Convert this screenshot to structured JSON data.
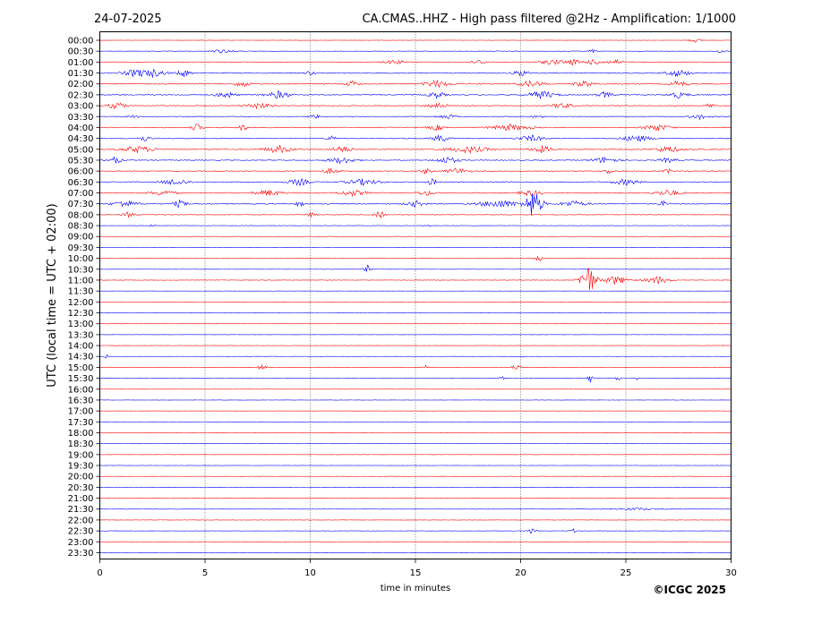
{
  "header": {
    "date": "24-07-2025",
    "title": "CA.CMAS..HHZ - High pass filtered @2Hz - Amplification: 1/1000"
  },
  "chart_data": {
    "type": "line",
    "title": "CA.CMAS..HHZ - High pass filtered @2Hz - Amplification: 1/1000",
    "xlabel": "time in minutes",
    "ylabel": "UTC (local time = UTC + 02:00)",
    "xlim": [
      0,
      30
    ],
    "x_ticks": [
      "0",
      "5",
      "10",
      "15",
      "20",
      "25",
      "30"
    ],
    "vertical_grid_minutes": [
      5,
      10,
      15,
      20,
      25
    ],
    "trace_colors": [
      "#ff0000",
      "#0000ff"
    ],
    "rows": [
      {
        "label": "00:00",
        "color": "#ff0000",
        "noise": 0.15,
        "bursts": [
          [
            28.3,
            0.8,
            0.6
          ]
        ]
      },
      {
        "label": "00:30",
        "color": "#0000ff",
        "noise": 0.25,
        "bursts": [
          [
            5.8,
            1.5,
            0.6
          ],
          [
            23.4,
            0.4,
            0.6
          ],
          [
            29.5,
            0.6,
            0.6
          ]
        ]
      },
      {
        "label": "01:00",
        "color": "#ff0000",
        "noise": 0.35,
        "bursts": [
          [
            14.0,
            1.4,
            0.7
          ],
          [
            18.0,
            1.0,
            0.7
          ],
          [
            21.5,
            1.5,
            0.9
          ],
          [
            22.5,
            1.2,
            0.9
          ],
          [
            23.5,
            1.5,
            0.8
          ],
          [
            24.5,
            1.0,
            0.8
          ]
        ]
      },
      {
        "label": "01:30",
        "color": "#0000ff",
        "noise": 0.55,
        "bursts": [
          [
            1.8,
            1.6,
            1.4
          ],
          [
            2.5,
            1.5,
            1.3
          ],
          [
            4.0,
            0.8,
            1.2
          ],
          [
            10.0,
            0.6,
            0.8
          ],
          [
            20.0,
            1.0,
            1.0
          ],
          [
            27.5,
            1.5,
            1.1
          ]
        ]
      },
      {
        "label": "02:00",
        "color": "#ff0000",
        "noise": 0.45,
        "bursts": [
          [
            6.8,
            1.0,
            1.0
          ],
          [
            12.0,
            0.8,
            1.0
          ],
          [
            16.0,
            1.5,
            1.2
          ],
          [
            20.5,
            1.5,
            1.1
          ],
          [
            23.0,
            1.2,
            1.0
          ],
          [
            27.5,
            1.2,
            1.0
          ]
        ]
      },
      {
        "label": "02:30",
        "color": "#0000ff",
        "noise": 0.55,
        "bursts": [
          [
            6.0,
            1.2,
            1.1
          ],
          [
            8.5,
            1.4,
            1.2
          ],
          [
            16.0,
            1.0,
            1.1
          ],
          [
            21.0,
            1.6,
            1.3
          ],
          [
            24.0,
            1.0,
            1.0
          ],
          [
            27.5,
            1.2,
            1.0
          ]
        ]
      },
      {
        "label": "03:00",
        "color": "#ff0000",
        "noise": 0.45,
        "bursts": [
          [
            0.8,
            1.0,
            1.2
          ],
          [
            7.5,
            1.6,
            1.0
          ],
          [
            16.0,
            1.2,
            1.0
          ],
          [
            22.0,
            1.2,
            1.0
          ],
          [
            29.0,
            0.6,
            0.8
          ]
        ]
      },
      {
        "label": "03:30",
        "color": "#0000ff",
        "noise": 0.35,
        "bursts": [
          [
            1.6,
            0.6,
            0.8
          ],
          [
            10.2,
            0.6,
            0.8
          ],
          [
            16.5,
            1.0,
            0.8
          ],
          [
            20.8,
            0.6,
            0.8
          ],
          [
            28.5,
            1.4,
            0.8
          ]
        ]
      },
      {
        "label": "04:00",
        "color": "#ff0000",
        "noise": 0.45,
        "bursts": [
          [
            4.6,
            0.6,
            1.2
          ],
          [
            6.8,
            0.6,
            1.1
          ],
          [
            16.0,
            1.0,
            0.9
          ],
          [
            19.5,
            2.5,
            1.0
          ],
          [
            26.5,
            1.6,
            1.1
          ]
        ]
      },
      {
        "label": "04:30",
        "color": "#0000ff",
        "noise": 0.45,
        "bursts": [
          [
            2.1,
            0.8,
            1.0
          ],
          [
            11.0,
            0.6,
            0.9
          ],
          [
            16.2,
            1.0,
            1.2
          ],
          [
            20.5,
            1.6,
            1.0
          ],
          [
            25.5,
            1.8,
            1.1
          ]
        ]
      },
      {
        "label": "05:00",
        "color": "#ff0000",
        "noise": 0.55,
        "bursts": [
          [
            1.8,
            2.0,
            1.1
          ],
          [
            8.5,
            1.6,
            1.3
          ],
          [
            11.5,
            1.2,
            1.1
          ],
          [
            17.5,
            2.5,
            1.1
          ],
          [
            21.0,
            1.4,
            1.1
          ],
          [
            27.0,
            1.6,
            1.1
          ]
        ]
      },
      {
        "label": "05:30",
        "color": "#0000ff",
        "noise": 0.45,
        "bursts": [
          [
            0.7,
            0.8,
            1.2
          ],
          [
            11.5,
            1.6,
            1.1
          ],
          [
            16.5,
            1.4,
            1.1
          ],
          [
            24.0,
            1.6,
            1.0
          ],
          [
            27.0,
            1.0,
            0.9
          ]
        ]
      },
      {
        "label": "06:00",
        "color": "#ff0000",
        "noise": 0.4,
        "bursts": [
          [
            11.0,
            1.0,
            0.9
          ],
          [
            15.5,
            0.6,
            1.0
          ],
          [
            17.0,
            1.4,
            1.0
          ],
          [
            24.2,
            0.6,
            0.9
          ],
          [
            27.0,
            0.5,
            0.8
          ]
        ]
      },
      {
        "label": "06:30",
        "color": "#0000ff",
        "noise": 0.5,
        "bursts": [
          [
            3.6,
            1.6,
            1.1
          ],
          [
            9.5,
            1.4,
            1.1
          ],
          [
            12.5,
            2.0,
            1.0
          ],
          [
            15.8,
            0.6,
            1.2
          ],
          [
            25.0,
            1.6,
            1.0
          ]
        ]
      },
      {
        "label": "07:00",
        "color": "#ff0000",
        "noise": 0.5,
        "bursts": [
          [
            3.0,
            1.6,
            0.9
          ],
          [
            8.0,
            1.6,
            1.0
          ],
          [
            12.0,
            1.6,
            1.0
          ],
          [
            15.5,
            1.0,
            0.9
          ],
          [
            20.5,
            1.5,
            0.9
          ],
          [
            27.0,
            1.6,
            1.0
          ]
        ]
      },
      {
        "label": "07:30",
        "color": "#0000ff",
        "noise": 0.55,
        "bursts": [
          [
            1.2,
            1.4,
            1.2
          ],
          [
            3.8,
            0.8,
            1.2
          ],
          [
            9.5,
            0.5,
            1.0
          ],
          [
            15.0,
            1.2,
            1.0
          ],
          [
            19.0,
            2.6,
            1.2
          ],
          [
            20.6,
            0.9,
            4.5
          ],
          [
            22.5,
            1.6,
            1.0
          ],
          [
            26.8,
            0.6,
            0.9
          ]
        ]
      },
      {
        "label": "08:00",
        "color": "#ff0000",
        "noise": 0.3,
        "bursts": [
          [
            1.4,
            0.8,
            0.9
          ],
          [
            10.0,
            0.6,
            0.8
          ],
          [
            13.3,
            0.6,
            1.2
          ]
        ]
      },
      {
        "label": "08:30",
        "color": "#0000ff",
        "noise": 0.2,
        "bursts": [
          [
            2.5,
            0.5,
            0.4
          ],
          [
            15.6,
            0.4,
            0.5
          ]
        ]
      },
      {
        "label": "09:00",
        "color": "#ff0000",
        "noise": 0.15,
        "bursts": []
      },
      {
        "label": "09:30",
        "color": "#0000ff",
        "noise": 0.15,
        "bursts": []
      },
      {
        "label": "10:00",
        "color": "#ff0000",
        "noise": 0.15,
        "bursts": [
          [
            20.9,
            0.4,
            1.3
          ]
        ]
      },
      {
        "label": "10:30",
        "color": "#0000ff",
        "noise": 0.15,
        "bursts": [
          [
            12.7,
            0.4,
            1.3
          ]
        ]
      },
      {
        "label": "11:00",
        "color": "#ff0000",
        "noise": 0.25,
        "bursts": [
          [
            23.2,
            0.8,
            4.8
          ],
          [
            24.5,
            1.6,
            1.3
          ],
          [
            26.5,
            1.4,
            1.2
          ]
        ]
      },
      {
        "label": "11:30",
        "color": "#0000ff",
        "noise": 0.12,
        "bursts": []
      },
      {
        "label": "12:00",
        "color": "#ff0000",
        "noise": 0.12,
        "bursts": []
      },
      {
        "label": "12:30",
        "color": "#0000ff",
        "noise": 0.12,
        "bursts": []
      },
      {
        "label": "13:00",
        "color": "#ff0000",
        "noise": 0.12,
        "bursts": []
      },
      {
        "label": "13:30",
        "color": "#0000ff",
        "noise": 0.12,
        "bursts": []
      },
      {
        "label": "14:00",
        "color": "#ff0000",
        "noise": 0.12,
        "bursts": []
      },
      {
        "label": "14:30",
        "color": "#0000ff",
        "noise": 0.12,
        "bursts": [
          [
            0.3,
            0.2,
            0.8
          ]
        ]
      },
      {
        "label": "15:00",
        "color": "#ff0000",
        "noise": 0.2,
        "bursts": [
          [
            7.7,
            0.5,
            1.0
          ],
          [
            15.5,
            0.3,
            0.7
          ],
          [
            19.8,
            0.4,
            1.2
          ]
        ]
      },
      {
        "label": "15:30",
        "color": "#0000ff",
        "noise": 0.2,
        "bursts": [
          [
            19.1,
            0.2,
            1.0
          ],
          [
            23.3,
            0.3,
            1.4
          ],
          [
            24.6,
            0.2,
            1.2
          ],
          [
            25.5,
            0.2,
            0.7
          ]
        ]
      },
      {
        "label": "16:00",
        "color": "#ff0000",
        "noise": 0.12,
        "bursts": []
      },
      {
        "label": "16:30",
        "color": "#0000ff",
        "noise": 0.12,
        "bursts": []
      },
      {
        "label": "17:00",
        "color": "#ff0000",
        "noise": 0.12,
        "bursts": []
      },
      {
        "label": "17:30",
        "color": "#0000ff",
        "noise": 0.12,
        "bursts": []
      },
      {
        "label": "18:00",
        "color": "#ff0000",
        "noise": 0.12,
        "bursts": []
      },
      {
        "label": "18:30",
        "color": "#0000ff",
        "noise": 0.12,
        "bursts": []
      },
      {
        "label": "19:00",
        "color": "#ff0000",
        "noise": 0.12,
        "bursts": []
      },
      {
        "label": "19:30",
        "color": "#0000ff",
        "noise": 0.12,
        "bursts": []
      },
      {
        "label": "20:00",
        "color": "#ff0000",
        "noise": 0.12,
        "bursts": []
      },
      {
        "label": "20:30",
        "color": "#0000ff",
        "noise": 0.12,
        "bursts": []
      },
      {
        "label": "21:00",
        "color": "#ff0000",
        "noise": 0.12,
        "bursts": []
      },
      {
        "label": "21:30",
        "color": "#0000ff",
        "noise": 0.2,
        "bursts": [
          [
            25.5,
            4.0,
            0.4
          ]
        ]
      },
      {
        "label": "22:00",
        "color": "#ff0000",
        "noise": 0.18,
        "bursts": []
      },
      {
        "label": "22:30",
        "color": "#0000ff",
        "noise": 0.2,
        "bursts": [
          [
            20.5,
            0.6,
            0.8
          ],
          [
            22.5,
            0.4,
            0.6
          ]
        ]
      },
      {
        "label": "23:00",
        "color": "#ff0000",
        "noise": 0.12,
        "bursts": []
      },
      {
        "label": "23:30",
        "color": "#0000ff",
        "noise": 0.12,
        "bursts": []
      }
    ]
  },
  "footer": {
    "copyright": "©ICGC 2025"
  }
}
